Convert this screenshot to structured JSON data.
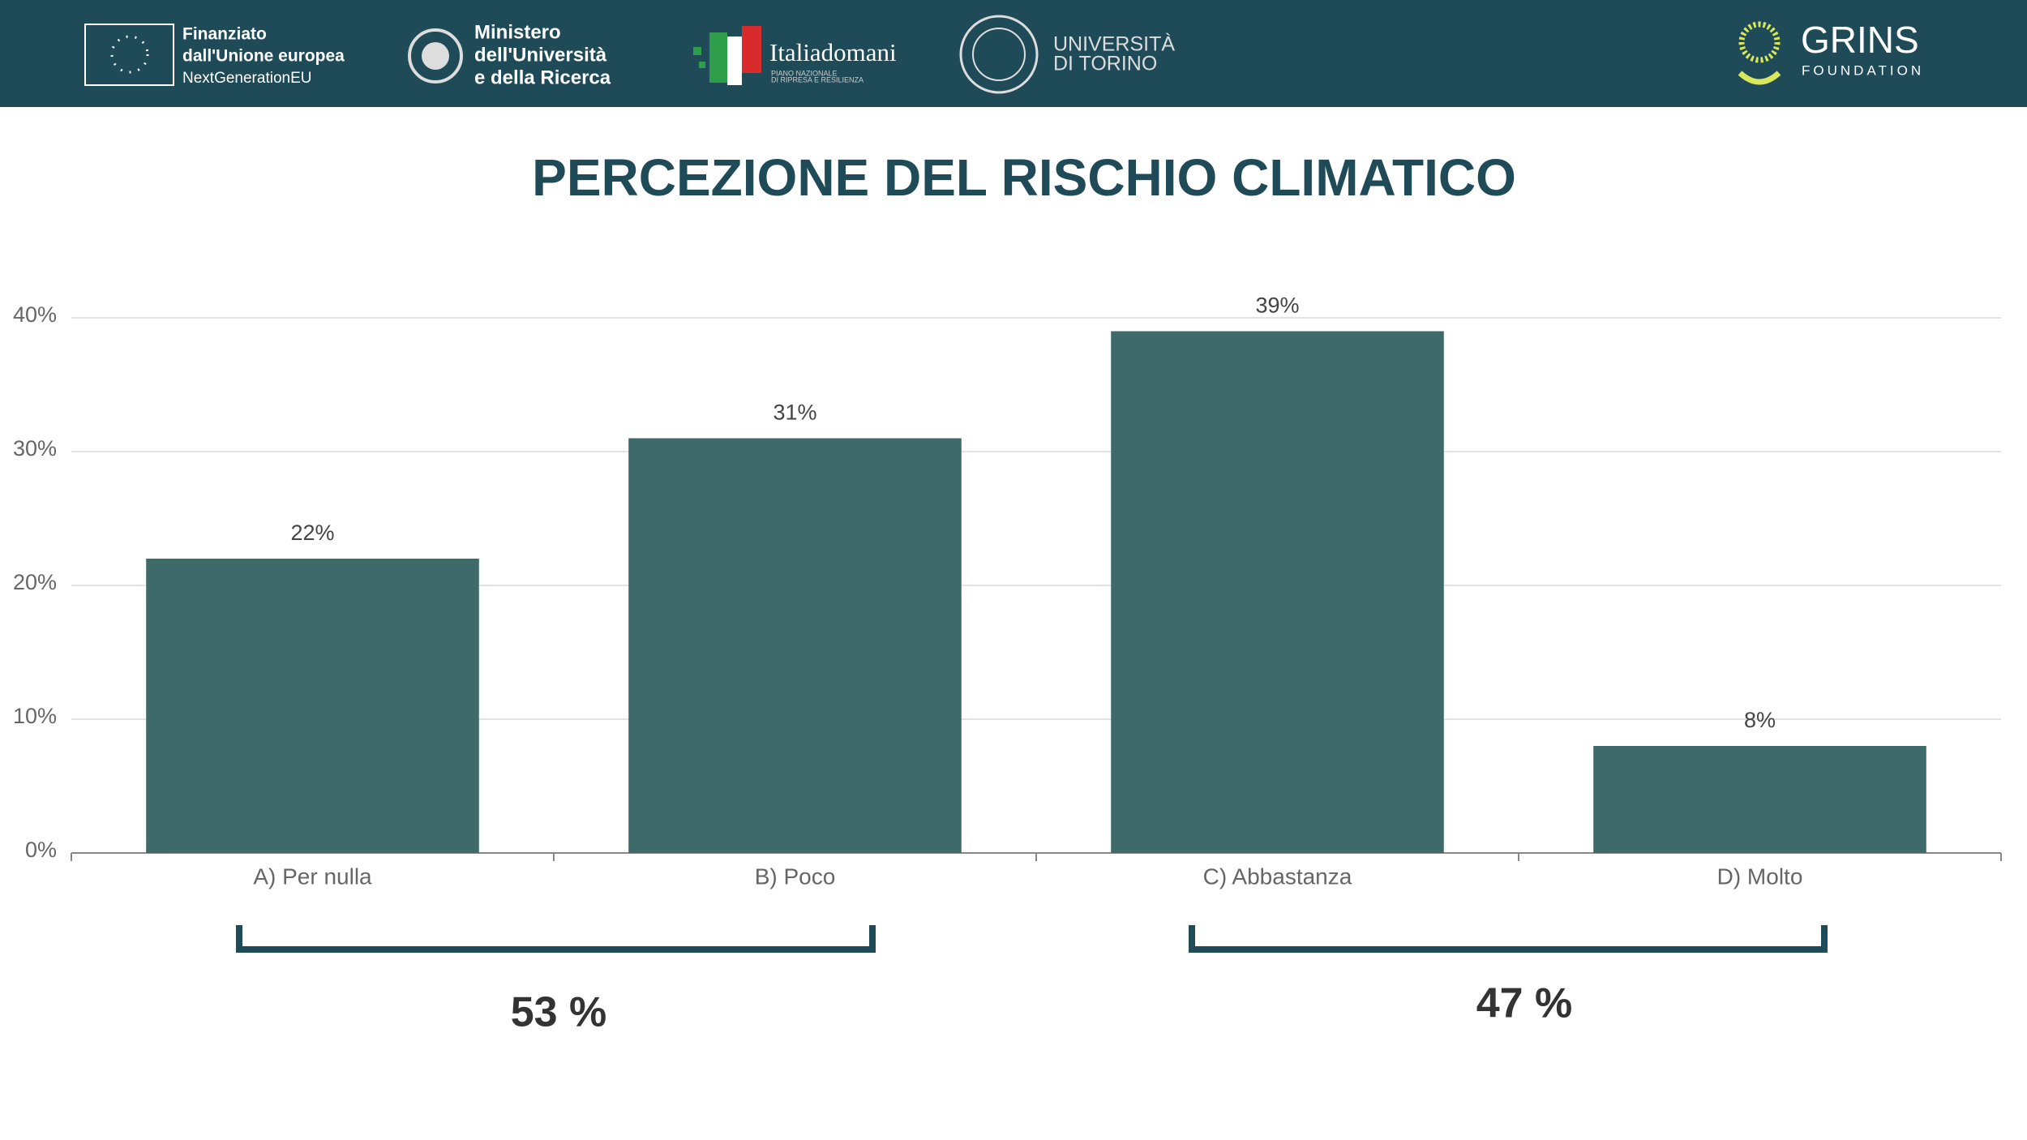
{
  "header": {
    "eu": [
      "Finanziato",
      "dall'Unione europea",
      "NextGenerationEU"
    ],
    "ministry": [
      "Ministero",
      "dell'Università",
      "e della Ricerca"
    ],
    "italiadomani": {
      "name": "Italiadomani",
      "sub": [
        "PIANO NAZIONALE",
        "DI RIPRESA E RESILIENZA"
      ]
    },
    "unito": [
      "UNIVERSITÀ",
      "DI TORINO"
    ],
    "grins": [
      "GRINS",
      "FOUNDATION"
    ]
  },
  "chart_data": {
    "type": "bar",
    "title": "PERCEZIONE DEL RISCHIO CLIMATICO",
    "categories": [
      "A) Per nulla",
      "B) Poco",
      "C) Abbastanza",
      "D) Molto"
    ],
    "values": [
      22,
      31,
      39,
      8
    ],
    "value_labels": [
      "22%",
      "31%",
      "39%",
      "8%"
    ],
    "color": "#3e6a6a",
    "ylim": [
      0,
      40
    ],
    "yticks": [
      {
        "value": 0,
        "label": "0%"
      },
      {
        "value": 10,
        "label": "10%"
      },
      {
        "value": 20,
        "label": "20%"
      },
      {
        "value": 30,
        "label": "30%"
      },
      {
        "value": 40,
        "label": "40%"
      }
    ],
    "grid": true,
    "annotations": [
      "53 %",
      "47 %"
    ]
  }
}
